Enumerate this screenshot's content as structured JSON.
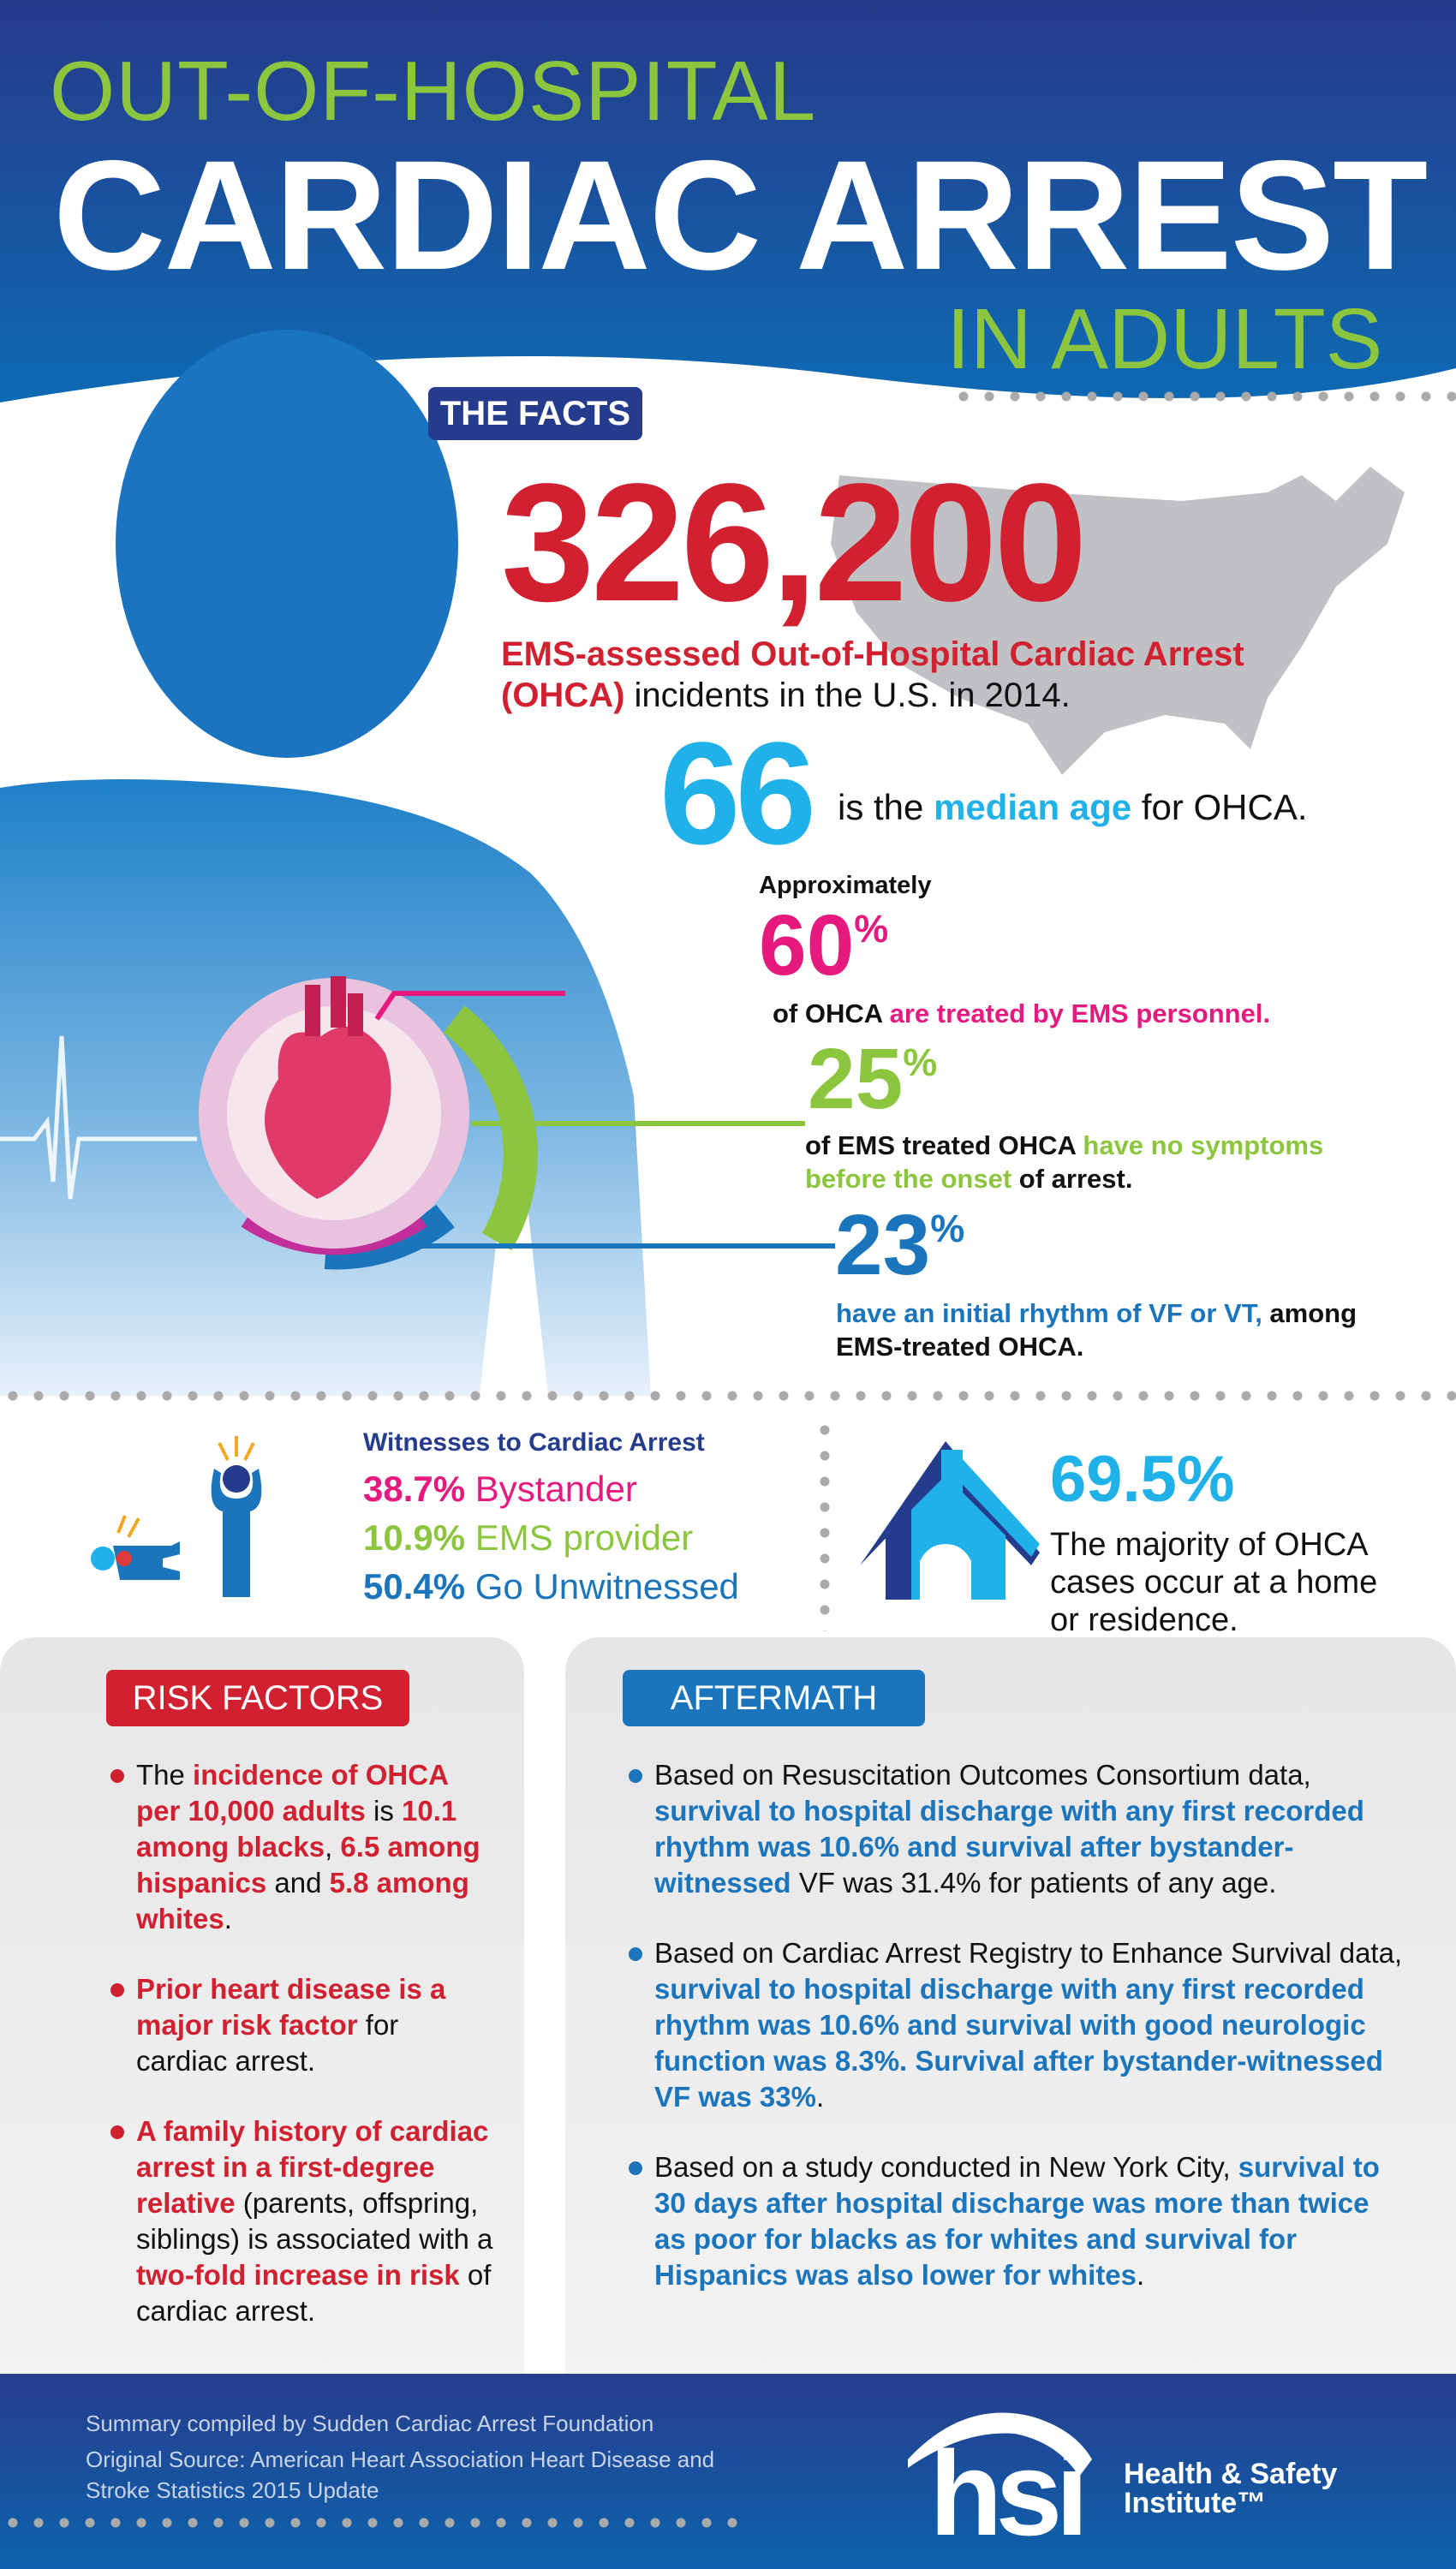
{
  "header": {
    "line1": "OUT-OF-HOSPITAL",
    "line2": "CARDIAC ARREST",
    "line3": "IN ADULTS",
    "facts_label": "THE FACTS"
  },
  "facts": {
    "incidents_number": "326,200",
    "incidents_bold": "EMS-assessed Out-of-Hospital Cardiac Arrest (OHCA)",
    "incidents_rest": " incidents in the U.S. in 2014.",
    "median_age": "66",
    "median_pre": "is the ",
    "median_bold": "median age",
    "median_post": " for OHCA.",
    "ems_approx": "Approximately",
    "ems_pct": "60",
    "ems_pre": "of OHCA ",
    "ems_colored": "are treated by EMS personnel.",
    "nosym_pct": "25",
    "nosym_pre": "of EMS treated OHCA ",
    "nosym_colored1": "have no symptoms",
    "nosym_colored2": "before the onset",
    "nosym_post": " of arrest.",
    "vf_pct": "23",
    "vf_colored": "have an initial rhythm of VF or VT,",
    "vf_post1": " among",
    "vf_post2": "EMS-treated OHCA.",
    "pct_sign": "%"
  },
  "witnesses": {
    "title": "Witnesses to Cardiac Arrest",
    "rows": [
      {
        "pct": "38.7%",
        "label": "Bystander",
        "color": "#e5197e"
      },
      {
        "pct": "10.9%",
        "label": "EMS provider",
        "color": "#8cc63f"
      },
      {
        "pct": "50.4%",
        "label": "Go Unwitnessed",
        "color": "#1b75bc"
      }
    ]
  },
  "home": {
    "pct": "69.5%",
    "lines": [
      "The majority of OHCA",
      "cases occur at a home",
      "or residence."
    ]
  },
  "risk": {
    "title": "RISK FACTORS",
    "items": [
      [
        {
          "t": "The ",
          "c": "n"
        },
        {
          "t": "incidence of OHCA per 10,000 adults",
          "c": "r"
        },
        {
          "t": " is ",
          "c": "n"
        },
        {
          "t": "10.1 among blacks",
          "c": "r"
        },
        {
          "t": ", ",
          "c": "n"
        },
        {
          "t": "6.5 among hispanics",
          "c": "r"
        },
        {
          "t": " and ",
          "c": "n"
        },
        {
          "t": "5.8 among whites",
          "c": "r"
        },
        {
          "t": ".",
          "c": "n"
        }
      ],
      [
        {
          "t": "Prior heart disease is a major risk factor",
          "c": "r"
        },
        {
          "t": " for cardiac arrest.",
          "c": "n"
        }
      ],
      [
        {
          "t": "A family history of cardiac arrest in a first-degree relative",
          "c": "r"
        },
        {
          "t": " (parents, offspring, siblings) is associated with a ",
          "c": "n"
        },
        {
          "t": "two-fold increase in risk",
          "c": "r"
        },
        {
          "t": " of cardiac arrest.",
          "c": "n"
        }
      ]
    ]
  },
  "aftermath": {
    "title": "AFTERMATH",
    "items": [
      [
        {
          "t": "Based on Resuscitation Outcomes Consortium data, ",
          "c": "n"
        },
        {
          "t": "survival to hospital discharge with any first recorded rhythm was 10.6% and survival after bystander-witnessed",
          "c": "b"
        },
        {
          "t": " VF was 31.4% for patients of any age.",
          "c": "n"
        }
      ],
      [
        {
          "t": "Based on Cardiac Arrest Registry to Enhance Survival data, ",
          "c": "n"
        },
        {
          "t": "survival to hospital discharge with any first recorded rhythm was 10.6% and survival with good neurologic function was 8.3%. Survival after bystander-witnessed VF was 33%",
          "c": "b"
        },
        {
          "t": ".",
          "c": "n"
        }
      ],
      [
        {
          "t": "Based on a study conducted in New York City, ",
          "c": "n"
        },
        {
          "t": "survival to 30 days after hospital discharge was more than twice as poor for blacks as for whites and survival for Hispanics was also lower for whites",
          "c": "b"
        },
        {
          "t": ".",
          "c": "n"
        }
      ]
    ]
  },
  "footer": {
    "compiled": "Summary compiled by Sudden Cardiac Arrest Foundation",
    "source1": "Original Source: American Heart Association Heart Disease and",
    "source2": "Stroke Statistics 2015 Update",
    "logo_mark": "hsi",
    "logo_name1": "Health & Safety",
    "logo_name2": "Institute™"
  },
  "colors": {
    "navy": "#253b8c",
    "red": "#d12030",
    "green": "#8cc63f",
    "cyan": "#1fb1e8",
    "magenta": "#e5197e",
    "blue": "#1b75bc"
  }
}
